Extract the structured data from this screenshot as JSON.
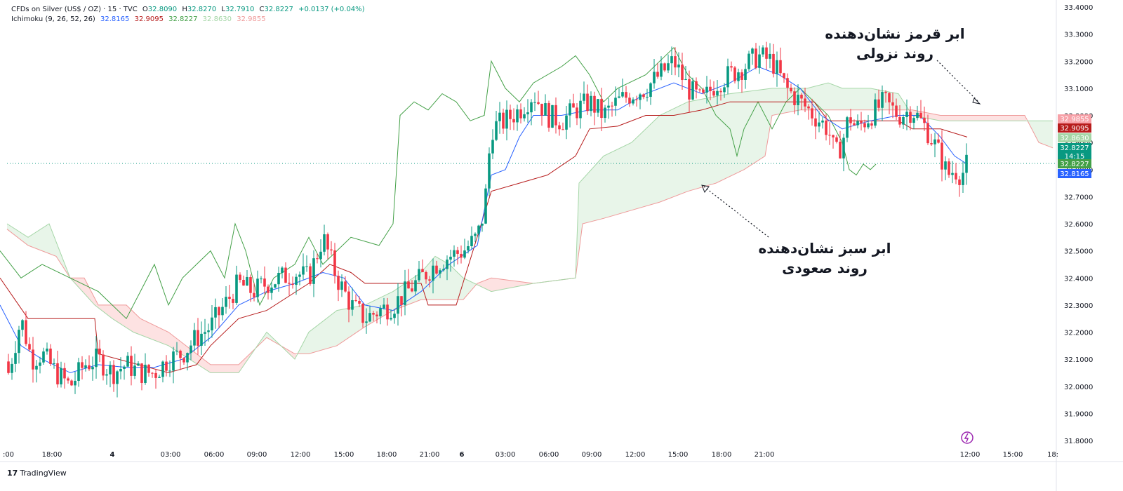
{
  "legend": {
    "symbol": "CFDs on Silver (US$ / OZ) · 15 · TVC",
    "open_label": "O",
    "open": "32.8090",
    "high_label": "H",
    "high": "32.8270",
    "low_label": "L",
    "low": "32.7910",
    "close_label": "C",
    "close": "32.8227",
    "change": "+0.0137 (+0.04%)",
    "indicator": "Ichimoku (9, 26, 52, 26)",
    "ind_values": [
      "32.8165",
      "32.9095",
      "32.8227",
      "32.8630",
      "32.9855"
    ]
  },
  "annotations": {
    "red_cloud_line1": "ابر قرمز نشان‌دهنده",
    "red_cloud_line2": "روند نزولی",
    "green_cloud_line1": "ابر سبز نشان‌دهنده",
    "green_cloud_line2": "روند صعودی"
  },
  "brand": {
    "logo": "17",
    "name": "TradingView"
  },
  "colors": {
    "up": "#089981",
    "down": "#f23645",
    "tenkan": "#2962ff",
    "kijun": "#b71c1c",
    "chikou": "#43a047",
    "span_a": "#a5d6a7",
    "span_b": "#ef9a9a",
    "cloud_green": "#e8f5e9",
    "cloud_red": "#fde2e2"
  },
  "chart_data": {
    "type": "candlestick",
    "ylim": [
      31.8,
      33.4
    ],
    "y_ticks": [
      "33.4000",
      "33.3000",
      "33.2000",
      "33.1000",
      "33.0000",
      "32.9000",
      "32.8000",
      "32.7000",
      "32.6000",
      "32.5000",
      "32.4000",
      "32.3000",
      "32.2000",
      "32.1000",
      "32.0000",
      "31.9000",
      "31.8000"
    ],
    "x_ticks": [
      ":00",
      "18:00",
      "4",
      "03:00",
      "06:00",
      "09:00",
      "12:00",
      "15:00",
      "18:00",
      "21:00",
      "6",
      "03:00",
      "06:00",
      "09:00",
      "12:00",
      "15:00",
      "18:00",
      "21:00",
      "12:00",
      "15:00",
      "18:"
    ],
    "price_badges": [
      {
        "value": "32.9855",
        "color": "#f7a1a8",
        "text_color": "#ffffff"
      },
      {
        "value": "32.9095",
        "color": "#b71c1c",
        "text_color": "#ffffff"
      },
      {
        "value": "32.8630",
        "color": "#a5d6a7",
        "text_color": "#ffffff"
      },
      {
        "value": "32.8227",
        "sub": "14:15",
        "color": "#089981",
        "text_color": "#ffffff"
      },
      {
        "value": "32.8227",
        "color": "#43a047",
        "text_color": "#ffffff"
      },
      {
        "value": "32.8165",
        "color": "#2962ff",
        "text_color": "#ffffff"
      }
    ],
    "last_price": 32.8227,
    "close_path": [
      [
        0,
        32.3
      ],
      [
        12,
        32.05
      ],
      [
        30,
        32.25
      ],
      [
        45,
        32.1
      ],
      [
        60,
        32.12
      ],
      [
        80,
        32.05
      ],
      [
        100,
        32.0
      ],
      [
        120,
        32.08
      ],
      [
        140,
        32.1
      ],
      [
        160,
        32.05
      ],
      [
        180,
        32.08
      ],
      [
        200,
        32.05
      ],
      [
        220,
        32.05
      ],
      [
        240,
        32.1
      ],
      [
        260,
        32.12
      ],
      [
        280,
        32.18
      ],
      [
        300,
        32.22
      ],
      [
        320,
        32.3
      ],
      [
        340,
        32.38
      ],
      [
        360,
        32.35
      ],
      [
        380,
        32.38
      ],
      [
        400,
        32.4
      ],
      [
        420,
        32.42
      ],
      [
        440,
        32.4
      ],
      [
        460,
        32.55
      ],
      [
        480,
        32.4
      ],
      [
        500,
        32.3
      ],
      [
        520,
        32.25
      ],
      [
        540,
        32.28
      ],
      [
        560,
        32.3
      ],
      [
        580,
        32.35
      ],
      [
        600,
        32.4
      ],
      [
        620,
        32.45
      ],
      [
        640,
        32.48
      ],
      [
        660,
        32.5
      ],
      [
        680,
        32.55
      ],
      [
        690,
        32.65
      ],
      [
        700,
        32.95
      ],
      [
        720,
        32.98
      ],
      [
        740,
        33.02
      ],
      [
        760,
        33.08
      ],
      [
        780,
        33.0
      ],
      [
        800,
        32.98
      ],
      [
        820,
        33.02
      ],
      [
        840,
        33.05
      ],
      [
        860,
        33.0
      ],
      [
        880,
        33.05
      ],
      [
        900,
        33.08
      ],
      [
        920,
        33.1
      ],
      [
        940,
        33.15
      ],
      [
        960,
        33.2
      ],
      [
        980,
        33.1
      ],
      [
        1000,
        33.05
      ],
      [
        1020,
        33.12
      ],
      [
        1040,
        33.15
      ],
      [
        1060,
        33.18
      ],
      [
        1080,
        33.22
      ],
      [
        1100,
        33.2
      ],
      [
        1110,
        33.15
      ],
      [
        1120,
        33.1
      ],
      [
        1140,
        33.05
      ],
      [
        1160,
        33.0
      ],
      [
        1180,
        32.95
      ],
      [
        1190,
        32.85
      ],
      [
        1200,
        32.9
      ],
      [
        1210,
        33.0
      ],
      [
        1220,
        32.95
      ],
      [
        1240,
        33.0
      ],
      [
        1260,
        33.05
      ],
      [
        1280,
        33.0
      ],
      [
        1300,
        33.02
      ],
      [
        1320,
        32.95
      ],
      [
        1340,
        32.85
      ],
      [
        1350,
        32.78
      ],
      [
        1360,
        32.8
      ],
      [
        1370,
        32.78
      ],
      [
        1378,
        32.82
      ]
    ],
    "tenkan_path": [
      [
        0,
        32.3
      ],
      [
        30,
        32.15
      ],
      [
        60,
        32.1
      ],
      [
        100,
        32.05
      ],
      [
        140,
        32.08
      ],
      [
        180,
        32.07
      ],
      [
        220,
        32.07
      ],
      [
        260,
        32.1
      ],
      [
        300,
        32.18
      ],
      [
        340,
        32.3
      ],
      [
        380,
        32.35
      ],
      [
        420,
        32.38
      ],
      [
        460,
        32.42
      ],
      [
        490,
        32.4
      ],
      [
        520,
        32.3
      ],
      [
        560,
        32.28
      ],
      [
        600,
        32.35
      ],
      [
        640,
        32.45
      ],
      [
        680,
        32.52
      ],
      [
        700,
        32.78
      ],
      [
        720,
        32.8
      ],
      [
        740,
        32.92
      ],
      [
        760,
        33.0
      ],
      [
        800,
        33.0
      ],
      [
        840,
        33.02
      ],
      [
        880,
        33.02
      ],
      [
        920,
        33.08
      ],
      [
        960,
        33.12
      ],
      [
        1000,
        33.08
      ],
      [
        1040,
        33.12
      ],
      [
        1080,
        33.18
      ],
      [
        1110,
        33.15
      ],
      [
        1140,
        33.1
      ],
      [
        1170,
        33.0
      ],
      [
        1200,
        32.95
      ],
      [
        1240,
        32.98
      ],
      [
        1280,
        33.0
      ],
      [
        1310,
        33.0
      ],
      [
        1340,
        32.92
      ],
      [
        1360,
        32.85
      ],
      [
        1378,
        32.82
      ]
    ],
    "kijun_path": [
      [
        0,
        32.4
      ],
      [
        40,
        32.25
      ],
      [
        135,
        32.25
      ],
      [
        140,
        32.12
      ],
      [
        240,
        32.05
      ],
      [
        280,
        32.08
      ],
      [
        300,
        32.15
      ],
      [
        340,
        32.25
      ],
      [
        380,
        32.28
      ],
      [
        440,
        32.38
      ],
      [
        470,
        32.45
      ],
      [
        500,
        32.42
      ],
      [
        520,
        32.38
      ],
      [
        600,
        32.38
      ],
      [
        610,
        32.3
      ],
      [
        650,
        32.3
      ],
      [
        700,
        32.72
      ],
      [
        740,
        32.75
      ],
      [
        780,
        32.78
      ],
      [
        820,
        32.85
      ],
      [
        840,
        32.95
      ],
      [
        880,
        32.96
      ],
      [
        920,
        33.0
      ],
      [
        960,
        33.0
      ],
      [
        1000,
        33.02
      ],
      [
        1040,
        33.05
      ],
      [
        1080,
        33.05
      ],
      [
        1110,
        33.05
      ],
      [
        1160,
        33.05
      ],
      [
        1180,
        32.98
      ],
      [
        1240,
        32.98
      ],
      [
        1280,
        32.98
      ],
      [
        1300,
        32.95
      ],
      [
        1340,
        32.95
      ],
      [
        1378,
        32.92
      ]
    ],
    "chikou_path": [
      [
        0,
        32.5
      ],
      [
        30,
        32.4
      ],
      [
        60,
        32.45
      ],
      [
        100,
        32.4
      ],
      [
        140,
        32.35
      ],
      [
        160,
        32.3
      ],
      [
        180,
        32.25
      ],
      [
        200,
        32.35
      ],
      [
        220,
        32.45
      ],
      [
        240,
        32.3
      ],
      [
        260,
        32.4
      ],
      [
        280,
        32.45
      ],
      [
        300,
        32.5
      ],
      [
        320,
        32.4
      ],
      [
        335,
        32.6
      ],
      [
        350,
        32.5
      ],
      [
        370,
        32.3
      ],
      [
        390,
        32.4
      ],
      [
        420,
        32.45
      ],
      [
        440,
        32.55
      ],
      [
        460,
        32.45
      ],
      [
        500,
        32.55
      ],
      [
        540,
        32.52
      ],
      [
        560,
        32.6
      ],
      [
        570,
        33.0
      ],
      [
        590,
        33.05
      ],
      [
        610,
        33.02
      ],
      [
        630,
        33.08
      ],
      [
        650,
        33.05
      ],
      [
        670,
        32.98
      ],
      [
        690,
        33.0
      ],
      [
        700,
        33.2
      ],
      [
        720,
        33.1
      ],
      [
        740,
        33.05
      ],
      [
        760,
        33.12
      ],
      [
        800,
        33.18
      ],
      [
        820,
        33.22
      ],
      [
        840,
        33.15
      ],
      [
        860,
        33.05
      ],
      [
        880,
        33.1
      ],
      [
        920,
        33.15
      ],
      [
        940,
        33.2
      ],
      [
        960,
        33.25
      ],
      [
        980,
        33.15
      ],
      [
        1000,
        33.1
      ],
      [
        1020,
        33.0
      ],
      [
        1040,
        32.95
      ],
      [
        1050,
        32.85
      ],
      [
        1060,
        32.95
      ],
      [
        1080,
        33.05
      ],
      [
        1100,
        32.95
      ],
      [
        1120,
        33.05
      ],
      [
        1140,
        33.1
      ],
      [
        1160,
        33.05
      ],
      [
        1180,
        33.0
      ],
      [
        1200,
        32.9
      ],
      [
        1210,
        32.8
      ],
      [
        1220,
        32.78
      ],
      [
        1230,
        32.82
      ],
      [
        1240,
        32.8
      ],
      [
        1248,
        32.82
      ]
    ],
    "span_a_path": [
      [
        10,
        32.6
      ],
      [
        40,
        32.55
      ],
      [
        70,
        32.6
      ],
      [
        100,
        32.4
      ],
      [
        135,
        32.3
      ],
      [
        160,
        32.25
      ],
      [
        190,
        32.2
      ],
      [
        240,
        32.15
      ],
      [
        300,
        32.05
      ],
      [
        340,
        32.05
      ],
      [
        380,
        32.2
      ],
      [
        420,
        32.1
      ],
      [
        440,
        32.2
      ],
      [
        480,
        32.28
      ],
      [
        520,
        32.3
      ],
      [
        560,
        32.35
      ],
      [
        600,
        32.42
      ],
      [
        620,
        32.48
      ],
      [
        640,
        32.45
      ],
      [
        660,
        32.4
      ],
      [
        700,
        32.35
      ],
      [
        760,
        32.38
      ],
      [
        820,
        32.4
      ],
      [
        825,
        32.75
      ],
      [
        860,
        32.85
      ],
      [
        900,
        32.9
      ],
      [
        940,
        33.0
      ],
      [
        980,
        33.05
      ],
      [
        1040,
        33.08
      ],
      [
        1100,
        33.1
      ],
      [
        1150,
        33.1
      ],
      [
        1180,
        33.12
      ],
      [
        1200,
        33.1
      ],
      [
        1240,
        33.1
      ],
      [
        1280,
        33.08
      ],
      [
        1300,
        33.0
      ],
      [
        1340,
        32.98
      ],
      [
        1380,
        32.98
      ],
      [
        1420,
        32.98
      ],
      [
        1460,
        32.98
      ],
      [
        1500,
        32.98
      ]
    ],
    "span_b_path": [
      [
        10,
        32.58
      ],
      [
        40,
        32.52
      ],
      [
        80,
        32.48
      ],
      [
        100,
        32.4
      ],
      [
        120,
        32.4
      ],
      [
        140,
        32.3
      ],
      [
        180,
        32.3
      ],
      [
        200,
        32.25
      ],
      [
        240,
        32.2
      ],
      [
        300,
        32.08
      ],
      [
        340,
        32.08
      ],
      [
        380,
        32.18
      ],
      [
        420,
        32.12
      ],
      [
        440,
        32.12
      ],
      [
        480,
        32.15
      ],
      [
        520,
        32.22
      ],
      [
        560,
        32.28
      ],
      [
        600,
        32.32
      ],
      [
        640,
        32.32
      ],
      [
        660,
        32.32
      ],
      [
        680,
        32.38
      ],
      [
        700,
        32.4
      ],
      [
        760,
        32.38
      ],
      [
        820,
        32.4
      ],
      [
        830,
        32.6
      ],
      [
        860,
        32.62
      ],
      [
        900,
        32.65
      ],
      [
        940,
        32.68
      ],
      [
        980,
        32.72
      ],
      [
        1020,
        32.75
      ],
      [
        1060,
        32.8
      ],
      [
        1090,
        32.85
      ],
      [
        1100,
        33.0
      ],
      [
        1140,
        33.02
      ],
      [
        1180,
        33.02
      ],
      [
        1220,
        33.02
      ],
      [
        1260,
        33.02
      ],
      [
        1300,
        33.02
      ],
      [
        1340,
        33.0
      ],
      [
        1380,
        33.0
      ],
      [
        1420,
        33.0
      ],
      [
        1460,
        33.0
      ],
      [
        1480,
        32.9
      ],
      [
        1500,
        32.88
      ]
    ]
  }
}
